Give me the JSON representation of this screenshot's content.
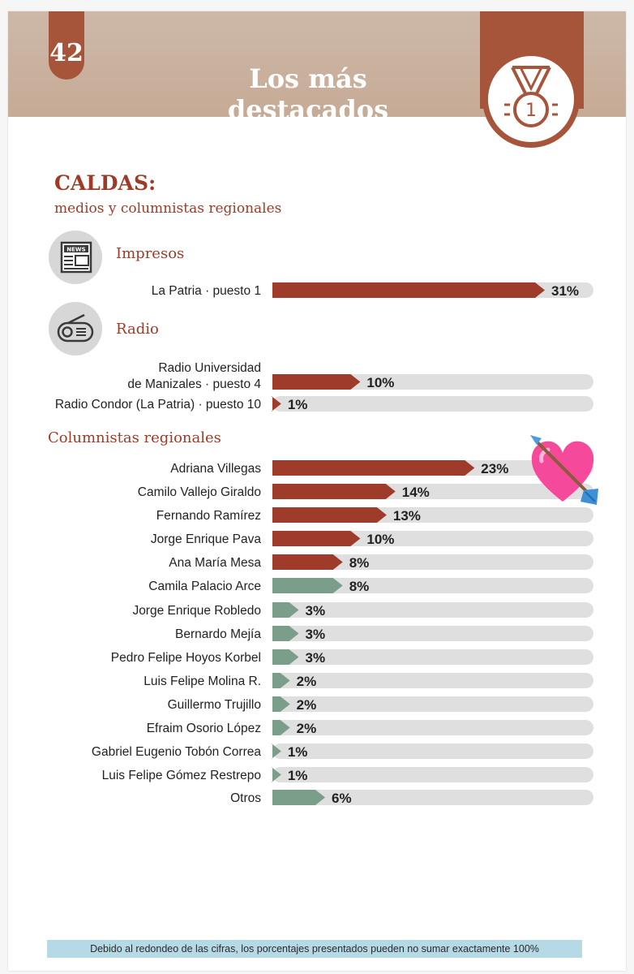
{
  "header": {
    "page_number": "42",
    "title": "Los más destacados",
    "medal_number": "1",
    "medal_icon": "medal-icon"
  },
  "section": {
    "title": "CALDAS:",
    "subtitle": "medios y columnistas regionales"
  },
  "colors": {
    "header_band": "#c9b19e",
    "accent": "#a6543a",
    "bar_red": "#9e3b2b",
    "bar_green": "#7a9e8a",
    "track": "#dfdfdf"
  },
  "groups": [
    {
      "label": "Impresos",
      "icon": "newspaper-icon"
    },
    {
      "label": "Radio",
      "icon": "radio-icon"
    },
    {
      "label": "Columnistas regionales",
      "icon": ""
    }
  ],
  "chart_data": {
    "type": "bar",
    "orientation": "horizontal",
    "unit": "%",
    "xlim": [
      0,
      32
    ],
    "rows": [
      {
        "group": "Impresos",
        "label": "La Patria · puesto 1",
        "value": 31,
        "value_label": "31%",
        "color": "red"
      },
      {
        "group": "Radio",
        "label": "Radio Universidad de Manizales · puesto 4",
        "label_lines": [
          "Radio Universidad",
          "de Manizales · puesto 4"
        ],
        "value": 10,
        "value_label": "10%",
        "color": "red"
      },
      {
        "group": "Radio",
        "label": "Radio Condor (La Patria) · puesto 10",
        "value": 1,
        "value_label": "1%",
        "color": "red"
      },
      {
        "group": "Columnistas regionales",
        "label": "Adriana Villegas",
        "value": 23,
        "value_label": "23%",
        "color": "red"
      },
      {
        "group": "Columnistas regionales",
        "label": "Camilo Vallejo Giraldo",
        "value": 14,
        "value_label": "14%",
        "color": "red"
      },
      {
        "group": "Columnistas regionales",
        "label": "Fernando Ramírez",
        "value": 13,
        "value_label": "13%",
        "color": "red"
      },
      {
        "group": "Columnistas regionales",
        "label": "Jorge Enrique Pava",
        "value": 10,
        "value_label": "10%",
        "color": "red"
      },
      {
        "group": "Columnistas regionales",
        "label": "Ana María Mesa",
        "value": 8,
        "value_label": "8%",
        "color": "red"
      },
      {
        "group": "Columnistas regionales",
        "label": "Camila Palacio Arce",
        "value": 8,
        "value_label": "8%",
        "color": "green"
      },
      {
        "group": "Columnistas regionales",
        "label": "Jorge Enrique Robledo",
        "value": 3,
        "value_label": "3%",
        "color": "green"
      },
      {
        "group": "Columnistas regionales",
        "label": "Bernardo Mejía",
        "value": 3,
        "value_label": "3%",
        "color": "green"
      },
      {
        "group": "Columnistas regionales",
        "label": "Pedro Felipe Hoyos Korbel",
        "value": 3,
        "value_label": "3%",
        "color": "green"
      },
      {
        "group": "Columnistas regionales",
        "label": "Luis Felipe Molina R.",
        "value": 2,
        "value_label": "2%",
        "color": "green"
      },
      {
        "group": "Columnistas regionales",
        "label": "Guillermo Trujillo",
        "value": 2,
        "value_label": "2%",
        "color": "green"
      },
      {
        "group": "Columnistas regionales",
        "label": "Efraim Osorio López",
        "value": 2,
        "value_label": "2%",
        "color": "green"
      },
      {
        "group": "Columnistas regionales",
        "label": "Gabriel Eugenio Tobón Correa",
        "value": 1,
        "value_label": "1%",
        "color": "green"
      },
      {
        "group": "Columnistas regionales",
        "label": "Luis Felipe Gómez Restrepo",
        "value": 1,
        "value_label": "1%",
        "color": "green"
      },
      {
        "group": "Columnistas regionales",
        "label": "Otros",
        "value": 6,
        "value_label": "6%",
        "color": "green"
      }
    ]
  },
  "decoration": {
    "sticker": "heart-with-arrow-icon"
  },
  "footnote": "Debido al redondeo de las cifras, los porcentajes presentados pueden no sumar exactamente 100%"
}
